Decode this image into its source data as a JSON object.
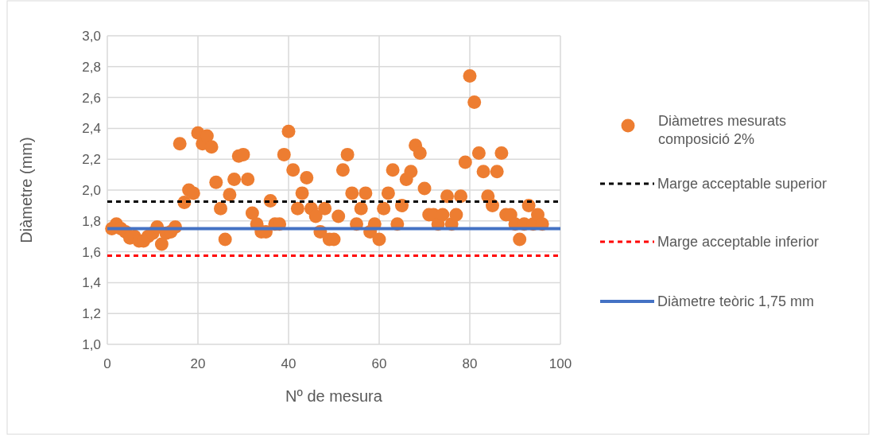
{
  "chart_data": {
    "type": "scatter",
    "xlabel": "Nº de mesura",
    "ylabel": "Diàmetre (mm)",
    "xlim": [
      0,
      100
    ],
    "xticks": [
      0,
      20,
      40,
      60,
      80,
      100
    ],
    "ylim": [
      1.0,
      3.0
    ],
    "yticks": [
      {
        "value": 1.0,
        "label": "1,0"
      },
      {
        "value": 1.2,
        "label": "1,2"
      },
      {
        "value": 1.4,
        "label": "1,4"
      },
      {
        "value": 1.6,
        "label": "1,6"
      },
      {
        "value": 1.8,
        "label": "1,8"
      },
      {
        "value": 2.0,
        "label": "2,0"
      },
      {
        "value": 2.2,
        "label": "2,2"
      },
      {
        "value": 2.4,
        "label": "2,4"
      },
      {
        "value": 2.6,
        "label": "2,6"
      },
      {
        "value": 2.8,
        "label": "2,8"
      },
      {
        "value": 3.0,
        "label": "3,0"
      }
    ],
    "grid": true,
    "legend": "right",
    "series": [
      {
        "name": "Diàmetres mesurats composició 2%",
        "marker": "circle",
        "color": "#ed7d31",
        "x": [
          1,
          2,
          3,
          4,
          5,
          6,
          7,
          8,
          9,
          10,
          11,
          12,
          13,
          14,
          15,
          16,
          17,
          18,
          19,
          20,
          21,
          22,
          23,
          24,
          25,
          26,
          27,
          28,
          29,
          30,
          31,
          32,
          33,
          34,
          35,
          36,
          37,
          38,
          39,
          40,
          41,
          42,
          43,
          44,
          45,
          46,
          47,
          48,
          49,
          50,
          51,
          52,
          53,
          54,
          55,
          56,
          57,
          58,
          59,
          60,
          61,
          62,
          63,
          64,
          65,
          66,
          67,
          68,
          69,
          70,
          71,
          72,
          73,
          74,
          75,
          76,
          77,
          78,
          79,
          80,
          81,
          82,
          83,
          84,
          85,
          86,
          87,
          88,
          89,
          90,
          91,
          92,
          93,
          94,
          95,
          96
        ],
        "values": [
          1.75,
          1.78,
          1.75,
          1.73,
          1.69,
          1.7,
          1.67,
          1.67,
          1.7,
          1.72,
          1.76,
          1.65,
          1.72,
          1.73,
          1.76,
          2.3,
          1.92,
          2.0,
          1.98,
          2.37,
          2.3,
          2.35,
          2.28,
          2.05,
          1.88,
          1.68,
          1.97,
          2.07,
          2.22,
          2.23,
          2.07,
          1.85,
          1.78,
          1.73,
          1.73,
          1.93,
          1.78,
          1.78,
          2.23,
          2.38,
          2.13,
          1.88,
          1.98,
          2.08,
          1.88,
          1.83,
          1.73,
          1.88,
          1.68,
          1.68,
          1.83,
          2.13,
          2.23,
          1.98,
          1.78,
          1.88,
          1.98,
          1.73,
          1.78,
          1.68,
          1.88,
          1.98,
          2.13,
          1.78,
          1.9,
          2.07,
          2.12,
          2.29,
          2.24,
          2.01,
          1.84,
          1.84,
          1.78,
          1.84,
          1.96,
          1.78,
          1.84,
          1.96,
          2.18,
          2.74,
          2.57,
          2.24,
          2.12,
          1.96,
          1.9,
          2.12,
          2.24,
          1.84,
          1.84,
          1.78,
          1.68,
          1.78,
          1.9,
          1.78,
          1.84,
          1.78
        ]
      },
      {
        "name": "Marge acceptable superior",
        "type": "line",
        "marker": "none",
        "line_style": "dashed",
        "color": "#000000",
        "x": [
          0,
          100
        ],
        "values": [
          1.925,
          1.925
        ]
      },
      {
        "name": "Marge acceptable inferior",
        "type": "line",
        "marker": "none",
        "line_style": "dashed",
        "color": "#ff0000",
        "x": [
          0,
          100
        ],
        "values": [
          1.575,
          1.575
        ]
      },
      {
        "name": "Diàmetre teòric 1,75 mm",
        "type": "line",
        "marker": "none",
        "line_style": "solid",
        "color": "#4472c4",
        "x": [
          0,
          100
        ],
        "values": [
          1.75,
          1.75
        ]
      }
    ]
  }
}
